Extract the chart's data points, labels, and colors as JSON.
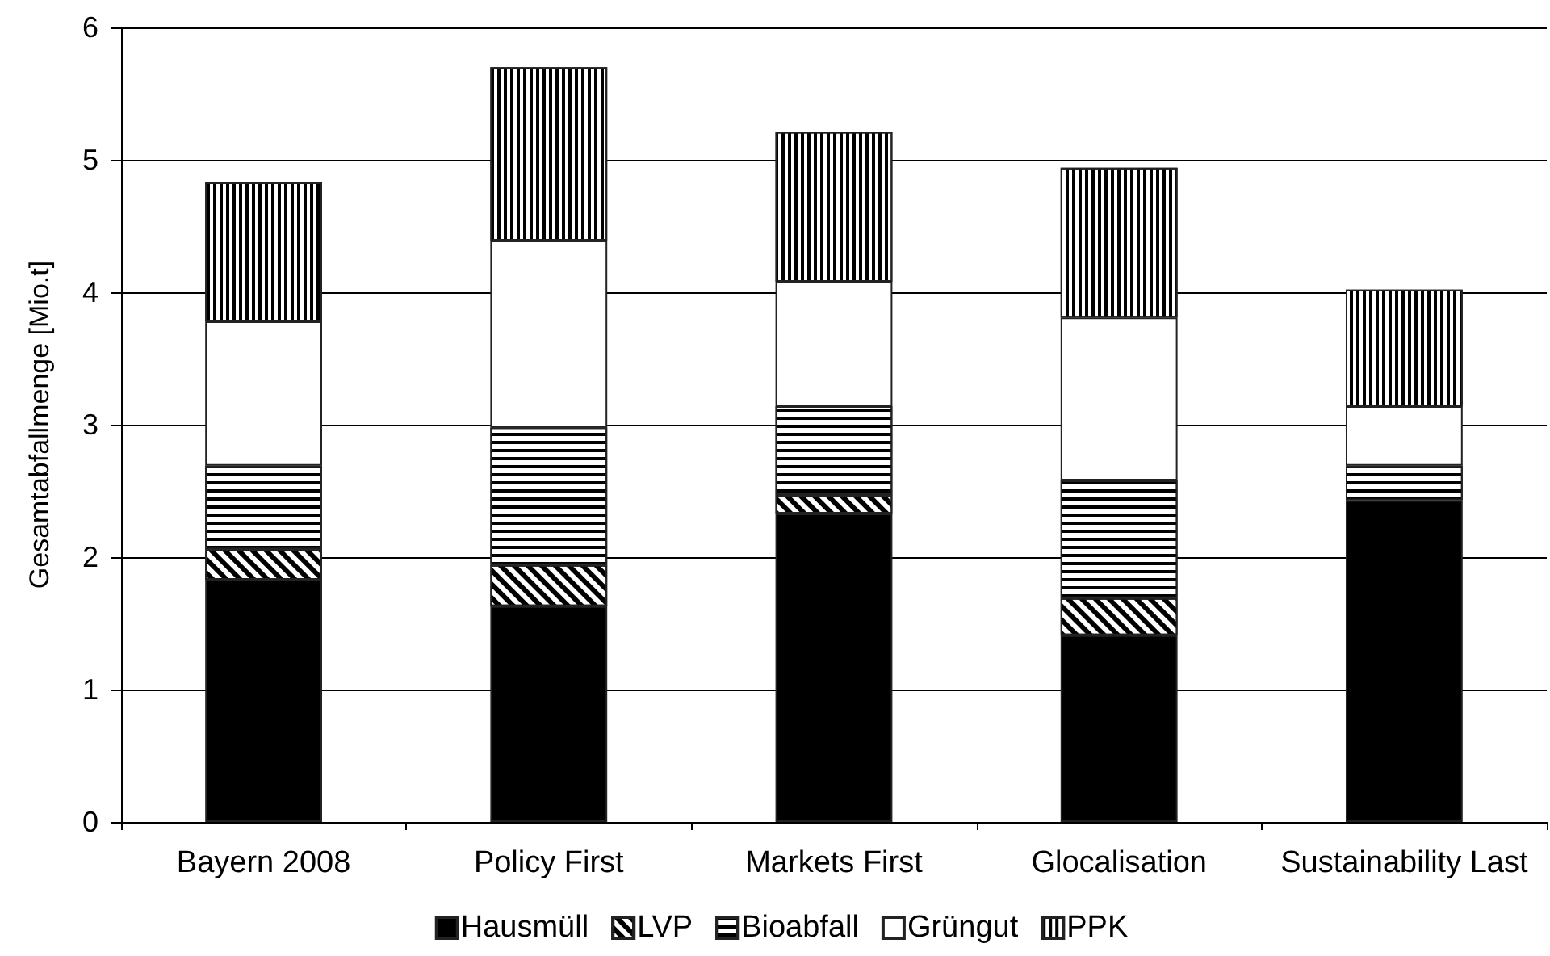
{
  "chart_data": {
    "type": "bar",
    "stacked": true,
    "ylabel": "Gesamtabfallmenge [Mio.t]",
    "categories": [
      "Bayern 2008",
      "Policy First",
      "Markets First",
      "Glocalisation",
      "Sustainability Last"
    ],
    "series": [
      {
        "name": "Hausmüll",
        "color": "#000000",
        "values": [
          1.83,
          1.63,
          2.33,
          1.41,
          2.43
        ]
      },
      {
        "name": "LVP",
        "color": "#ffffff",
        "values": [
          0.23,
          0.31,
          0.14,
          0.28,
          0
        ]
      },
      {
        "name": "Bioabfall",
        "color": "#ffffff",
        "values": [
          0.63,
          1.04,
          0.67,
          0.89,
          0.26
        ]
      },
      {
        "name": "Grüngut",
        "color": "#ffffff",
        "values": [
          1.09,
          1.41,
          0.94,
          1.23,
          0.45
        ]
      },
      {
        "name": "PPK",
        "color": "#ffffff",
        "values": [
          1.05,
          1.31,
          1.13,
          1.13,
          0.88
        ]
      }
    ],
    "ylim": [
      0,
      6
    ],
    "yticks": [
      0,
      1,
      2,
      3,
      4,
      5,
      6
    ],
    "grid": "y",
    "legend": "bottom"
  }
}
